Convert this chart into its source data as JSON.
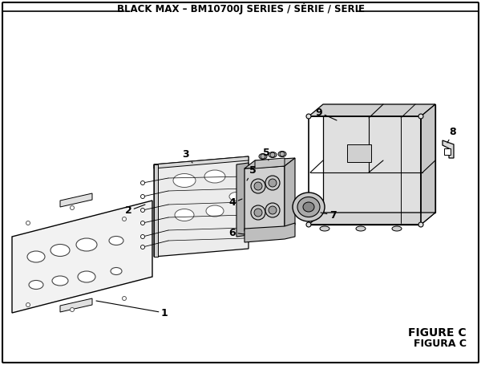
{
  "title": "BLACK MAX – BM10700J SERIES / SÉRIE / SERIE",
  "figure_label": "FIGURE C",
  "figura_label": "FIGURA C",
  "bg_color": "#ffffff",
  "border_color": "#000000",
  "title_fontsize": 8.5,
  "label_fontsize": 9
}
